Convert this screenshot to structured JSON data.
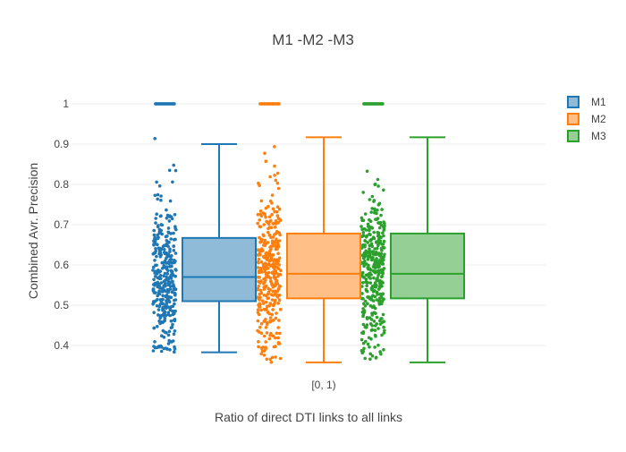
{
  "chart_data": {
    "type": "box",
    "title": "M1 -M2 -M3",
    "xlabel": "Ratio of direct DTI links to all links",
    "ylabel": "Combined Avr. Precision",
    "categories": [
      "[0, 1)"
    ],
    "yticks": [
      0.4,
      0.5,
      0.6,
      0.7,
      0.8,
      0.9,
      1
    ],
    "yticklabels": [
      "0.4",
      "0.5",
      "0.6",
      "0.7",
      "0.8",
      "0.9",
      "1"
    ],
    "ylim": [
      0.35,
      1.02
    ],
    "grid": true,
    "legend_position": "top-right",
    "series": [
      {
        "name": "M1",
        "color": "#1f77b4",
        "fill": "#8fbbd9",
        "whisker_low": 0.383,
        "q1": 0.51,
        "median": 0.57,
        "q3": 0.667,
        "whisker_high": 0.9,
        "points_min": 0.383,
        "points_max": 0.917
      },
      {
        "name": "M2",
        "color": "#ff7f0e",
        "fill": "#ffbf86",
        "whisker_low": 0.358,
        "q1": 0.517,
        "median": 0.578,
        "q3": 0.678,
        "whisker_high": 0.917,
        "points_min": 0.358,
        "points_max": 0.933
      },
      {
        "name": "M3",
        "color": "#2ca02c",
        "fill": "#95cf95",
        "whisker_low": 0.358,
        "q1": 0.517,
        "median": 0.578,
        "q3": 0.678,
        "whisker_high": 0.917,
        "points_min": 0.358,
        "points_max": 0.933
      }
    ]
  }
}
